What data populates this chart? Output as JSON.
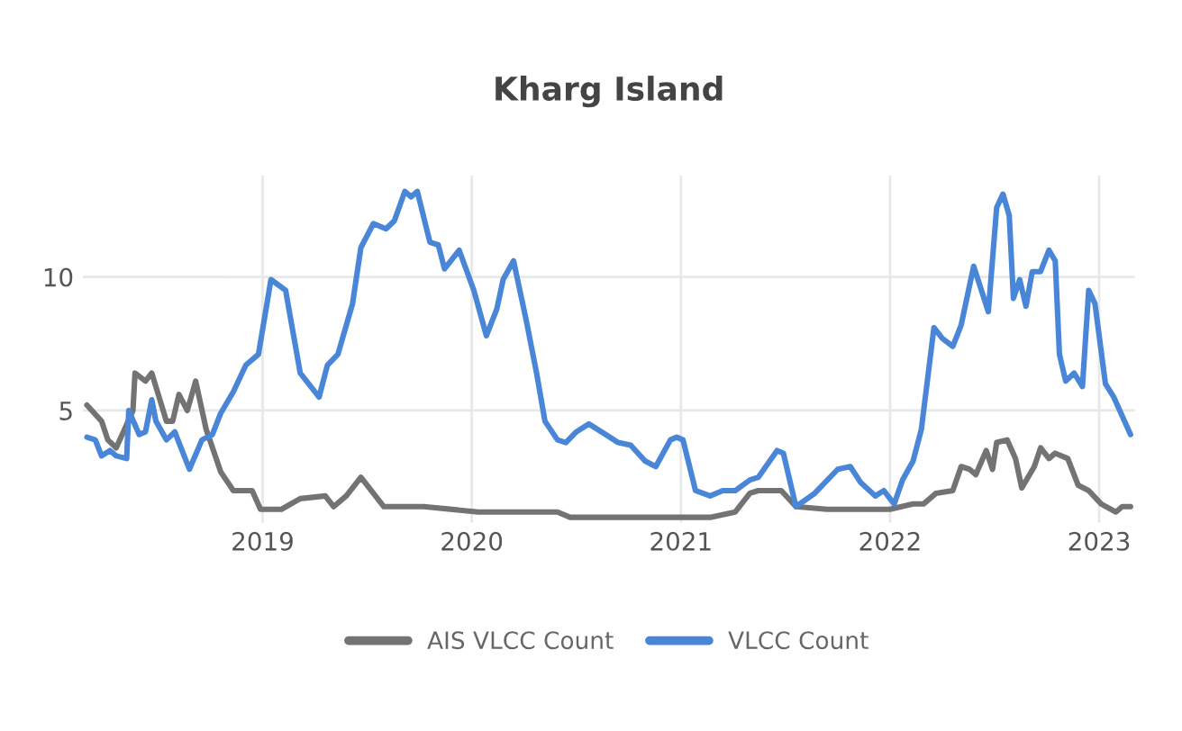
{
  "chart_data": {
    "type": "line",
    "title": "Kharg Island",
    "xlim": [
      2018.14,
      2023.17
    ],
    "xticks": [
      2019,
      2020,
      2021,
      2022,
      2023
    ],
    "ylim": [
      0.8,
      13.8
    ],
    "yticks": [
      5,
      10
    ],
    "grid": true,
    "legend": "bottom",
    "line_style": "solid",
    "marker": "none",
    "series": [
      {
        "name": "AIS VLCC Count",
        "color": "#737373",
        "x": [
          2018.16,
          2018.23,
          2018.26,
          2018.3,
          2018.38,
          2018.39,
          2018.44,
          2018.47,
          2018.54,
          2018.57,
          2018.6,
          2018.64,
          2018.68,
          2018.73,
          2018.8,
          2018.86,
          2018.95,
          2018.99,
          2019.09,
          2019.18,
          2019.3,
          2019.34,
          2019.4,
          2019.47,
          2019.58,
          2019.77,
          2020.03,
          2020.41,
          2020.47,
          2020.64,
          2020.7,
          2021.14,
          2021.26,
          2021.33,
          2021.37,
          2021.48,
          2021.55,
          2021.7,
          2022.0,
          2022.11,
          2022.16,
          2022.22,
          2022.3,
          2022.34,
          2022.38,
          2022.41,
          2022.46,
          2022.49,
          2022.51,
          2022.56,
          2022.6,
          2022.63,
          2022.69,
          2022.72,
          2022.76,
          2022.79,
          2022.85,
          2022.9,
          2022.95,
          2023.01,
          2023.08,
          2023.11,
          2023.15
        ],
        "values": [
          5.2,
          4.6,
          3.9,
          3.6,
          5.0,
          6.4,
          6.1,
          6.4,
          4.6,
          4.6,
          5.6,
          5.0,
          6.1,
          4.3,
          2.7,
          2.0,
          2.0,
          1.3,
          1.3,
          1.7,
          1.8,
          1.4,
          1.8,
          2.5,
          1.4,
          1.4,
          1.2,
          1.2,
          1.0,
          1.0,
          1.0,
          1.0,
          1.2,
          1.9,
          2.0,
          2.0,
          1.4,
          1.3,
          1.3,
          1.5,
          1.5,
          1.9,
          2.0,
          2.9,
          2.8,
          2.6,
          3.5,
          2.8,
          3.8,
          3.9,
          3.2,
          2.1,
          2.9,
          3.6,
          3.2,
          3.4,
          3.2,
          2.2,
          2.0,
          1.5,
          1.2,
          1.4,
          1.4
        ]
      },
      {
        "name": "VLCC Count",
        "color": "#4a86d8",
        "x": [
          2018.16,
          2018.2,
          2018.23,
          2018.27,
          2018.3,
          2018.35,
          2018.36,
          2018.41,
          2018.44,
          2018.47,
          2018.49,
          2018.54,
          2018.58,
          2018.65,
          2018.71,
          2018.76,
          2018.8,
          2018.86,
          2018.92,
          2018.98,
          2019.04,
          2019.11,
          2019.18,
          2019.27,
          2019.31,
          2019.36,
          2019.43,
          2019.47,
          2019.53,
          2019.59,
          2019.63,
          2019.68,
          2019.71,
          2019.74,
          2019.8,
          2019.84,
          2019.87,
          2019.94,
          2020.01,
          2020.07,
          2020.12,
          2020.15,
          2020.2,
          2020.26,
          2020.31,
          2020.35,
          2020.41,
          2020.45,
          2020.5,
          2020.56,
          2020.64,
          2020.7,
          2020.76,
          2020.83,
          2020.88,
          2020.95,
          2020.98,
          2021.01,
          2021.07,
          2021.14,
          2021.2,
          2021.26,
          2021.33,
          2021.37,
          2021.46,
          2021.49,
          2021.55,
          2021.64,
          2021.75,
          2021.81,
          2021.86,
          2021.93,
          2021.97,
          2022.02,
          2022.06,
          2022.11,
          2022.15,
          2022.21,
          2022.25,
          2022.3,
          2022.34,
          2022.4,
          2022.47,
          2022.51,
          2022.54,
          2022.57,
          2022.59,
          2022.62,
          2022.65,
          2022.68,
          2022.72,
          2022.76,
          2022.79,
          2022.81,
          2022.84,
          2022.88,
          2022.92,
          2022.95,
          2022.98,
          2023.03,
          2023.07,
          2023.11,
          2023.15
        ],
        "values": [
          4.0,
          3.9,
          3.3,
          3.5,
          3.3,
          3.2,
          5.0,
          4.1,
          4.2,
          5.4,
          4.6,
          3.9,
          4.2,
          2.8,
          3.9,
          4.1,
          4.9,
          5.7,
          6.7,
          7.1,
          9.9,
          9.5,
          6.4,
          5.5,
          6.7,
          7.1,
          9.0,
          11.1,
          12.0,
          11.8,
          12.1,
          13.2,
          13.0,
          13.2,
          11.3,
          11.2,
          10.3,
          11.0,
          9.5,
          7.8,
          8.8,
          9.9,
          10.6,
          8.4,
          6.4,
          4.6,
          3.9,
          3.8,
          4.2,
          4.5,
          4.1,
          3.8,
          3.7,
          3.1,
          2.9,
          3.9,
          4.0,
          3.9,
          2.0,
          1.8,
          2.0,
          2.0,
          2.4,
          2.5,
          3.5,
          3.4,
          1.4,
          1.9,
          2.8,
          2.9,
          2.3,
          1.8,
          2.0,
          1.5,
          2.4,
          3.1,
          4.3,
          8.1,
          7.7,
          7.4,
          8.2,
          10.4,
          8.7,
          12.6,
          13.1,
          12.3,
          9.2,
          9.9,
          8.9,
          10.2,
          10.2,
          11.0,
          10.6,
          7.1,
          6.1,
          6.4,
          5.9,
          9.5,
          9.0,
          6.0,
          5.5,
          4.8,
          4.1
        ]
      }
    ]
  }
}
